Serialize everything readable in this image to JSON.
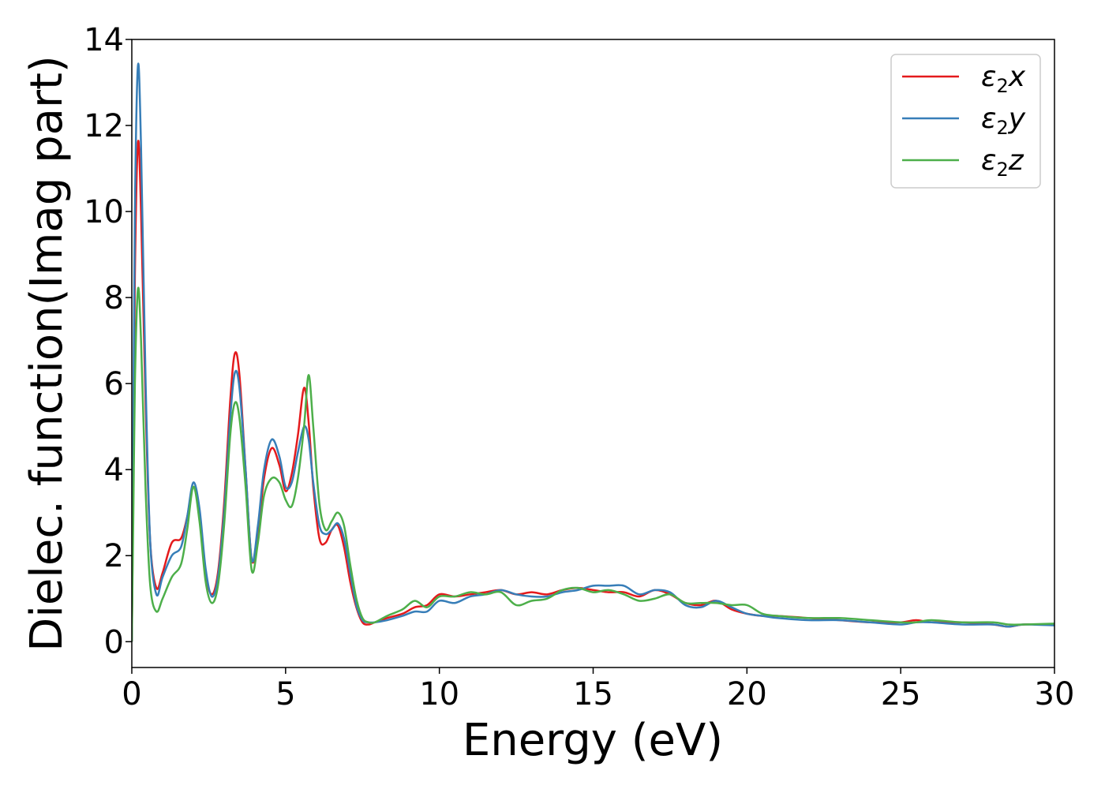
{
  "chart_data": {
    "type": "line",
    "xlabel": "Energy (eV)",
    "ylabel": "Dielec. function(Imag part)",
    "xlim": [
      0,
      30
    ],
    "ylim": [
      -0.6,
      14
    ],
    "xticks": [
      0,
      5,
      10,
      15,
      20,
      25,
      30
    ],
    "yticks": [
      0,
      2,
      4,
      6,
      8,
      10,
      12,
      14
    ],
    "grid": false,
    "legend_position": "top-right",
    "series": [
      {
        "name": "ε₂x",
        "legend": {
          "base": "ε",
          "sub": "2",
          "var": "x"
        },
        "color": "#e41a1c",
        "x": [
          0,
          0.05,
          0.1,
          0.2,
          0.3,
          0.45,
          0.6,
          0.8,
          1.0,
          1.3,
          1.6,
          1.8,
          2.0,
          2.2,
          2.4,
          2.6,
          2.8,
          3.0,
          3.2,
          3.35,
          3.5,
          3.7,
          3.9,
          4.1,
          4.3,
          4.55,
          4.8,
          5.0,
          5.2,
          5.4,
          5.6,
          5.75,
          5.9,
          6.1,
          6.3,
          6.5,
          6.7,
          6.9,
          7.1,
          7.3,
          7.5,
          7.7,
          7.9,
          8.3,
          8.8,
          9.2,
          9.6,
          10.0,
          10.5,
          11.0,
          11.5,
          12.0,
          12.5,
          13.0,
          13.5,
          14.0,
          14.5,
          15.0,
          15.5,
          16.0,
          16.5,
          17.0,
          17.5,
          18.0,
          18.5,
          19.0,
          19.5,
          20.0,
          20.5,
          21.0,
          22.0,
          23.0,
          24.0,
          25.0,
          25.5,
          26.0,
          27.0,
          28.0,
          28.5,
          29.0,
          30.0
        ],
        "y": [
          0,
          4.0,
          8.5,
          11.6,
          10.0,
          5.5,
          2.3,
          1.25,
          1.6,
          2.3,
          2.4,
          2.9,
          3.6,
          3.0,
          1.6,
          1.1,
          1.6,
          3.2,
          5.6,
          6.7,
          6.2,
          4.0,
          1.9,
          2.5,
          3.8,
          4.5,
          4.1,
          3.5,
          3.9,
          4.8,
          5.9,
          5.1,
          3.6,
          2.4,
          2.3,
          2.6,
          2.7,
          2.2,
          1.4,
          0.8,
          0.45,
          0.4,
          0.45,
          0.55,
          0.65,
          0.8,
          0.85,
          1.1,
          1.05,
          1.1,
          1.15,
          1.2,
          1.1,
          1.15,
          1.1,
          1.2,
          1.25,
          1.2,
          1.15,
          1.15,
          1.05,
          1.2,
          1.1,
          0.9,
          0.85,
          0.95,
          0.75,
          0.65,
          0.6,
          0.6,
          0.55,
          0.5,
          0.45,
          0.45,
          0.5,
          0.45,
          0.45,
          0.4,
          0.35,
          0.4,
          0.4
        ]
      },
      {
        "name": "ε₂y",
        "legend": {
          "base": "ε",
          "sub": "2",
          "var": "y"
        },
        "color": "#377eb8",
        "x": [
          0,
          0.05,
          0.1,
          0.2,
          0.3,
          0.45,
          0.6,
          0.8,
          1.0,
          1.3,
          1.6,
          1.8,
          2.0,
          2.2,
          2.4,
          2.6,
          2.8,
          3.0,
          3.2,
          3.35,
          3.5,
          3.7,
          3.9,
          4.1,
          4.3,
          4.55,
          4.8,
          5.0,
          5.2,
          5.4,
          5.6,
          5.75,
          5.9,
          6.1,
          6.3,
          6.5,
          6.7,
          6.9,
          7.1,
          7.3,
          7.5,
          7.7,
          7.9,
          8.3,
          8.8,
          9.2,
          9.6,
          10.0,
          10.5,
          11.0,
          11.5,
          12.0,
          12.5,
          13.0,
          13.5,
          14.0,
          14.5,
          15.0,
          15.5,
          16.0,
          16.5,
          17.0,
          17.5,
          18.0,
          18.5,
          19.0,
          19.5,
          20.0,
          20.5,
          21.0,
          22.0,
          23.0,
          24.0,
          25.0,
          25.5,
          26.0,
          27.0,
          28.0,
          28.5,
          29.0,
          30.0
        ],
        "y": [
          0,
          5.0,
          10.0,
          13.4,
          11.5,
          6.0,
          2.3,
          1.1,
          1.5,
          2.0,
          2.2,
          2.9,
          3.7,
          3.1,
          1.7,
          1.05,
          1.5,
          3.0,
          5.2,
          6.25,
          5.9,
          4.0,
          1.9,
          2.7,
          4.0,
          4.7,
          4.3,
          3.6,
          3.7,
          4.4,
          5.0,
          4.7,
          3.7,
          2.7,
          2.5,
          2.6,
          2.75,
          2.4,
          1.6,
          0.85,
          0.5,
          0.45,
          0.45,
          0.5,
          0.6,
          0.7,
          0.7,
          0.95,
          0.9,
          1.05,
          1.1,
          1.2,
          1.1,
          1.05,
          1.05,
          1.15,
          1.2,
          1.3,
          1.3,
          1.3,
          1.1,
          1.2,
          1.15,
          0.85,
          0.8,
          0.95,
          0.8,
          0.65,
          0.6,
          0.55,
          0.5,
          0.5,
          0.45,
          0.4,
          0.45,
          0.45,
          0.4,
          0.4,
          0.35,
          0.4,
          0.38
        ]
      },
      {
        "name": "ε₂z",
        "legend": {
          "base": "ε",
          "sub": "2",
          "var": "z"
        },
        "color": "#4daf4a",
        "x": [
          0,
          0.05,
          0.1,
          0.2,
          0.3,
          0.45,
          0.6,
          0.8,
          1.0,
          1.3,
          1.6,
          1.8,
          2.0,
          2.2,
          2.4,
          2.6,
          2.8,
          3.0,
          3.2,
          3.35,
          3.5,
          3.7,
          3.9,
          4.1,
          4.3,
          4.55,
          4.8,
          5.0,
          5.2,
          5.4,
          5.6,
          5.75,
          5.9,
          6.1,
          6.3,
          6.5,
          6.7,
          6.9,
          7.1,
          7.3,
          7.5,
          7.7,
          7.9,
          8.3,
          8.8,
          9.2,
          9.6,
          10.0,
          10.5,
          11.0,
          11.5,
          12.0,
          12.5,
          13.0,
          13.5,
          14.0,
          14.5,
          15.0,
          15.5,
          16.0,
          16.5,
          17.0,
          17.5,
          18.0,
          18.5,
          19.0,
          19.5,
          20.0,
          20.5,
          21.0,
          22.0,
          23.0,
          24.0,
          25.0,
          25.5,
          26.0,
          27.0,
          28.0,
          28.5,
          29.0,
          30.0
        ],
        "y": [
          0,
          3.0,
          6.0,
          8.2,
          7.0,
          3.5,
          1.3,
          0.7,
          1.0,
          1.5,
          1.8,
          2.6,
          3.6,
          2.8,
          1.4,
          0.9,
          1.3,
          2.7,
          4.8,
          5.55,
          5.2,
          3.6,
          1.65,
          2.3,
          3.4,
          3.8,
          3.7,
          3.3,
          3.15,
          3.8,
          5.0,
          6.2,
          5.0,
          3.2,
          2.6,
          2.8,
          3.0,
          2.7,
          1.8,
          1.0,
          0.55,
          0.45,
          0.45,
          0.6,
          0.75,
          0.95,
          0.8,
          1.05,
          1.05,
          1.15,
          1.1,
          1.15,
          0.85,
          0.95,
          1.0,
          1.2,
          1.25,
          1.15,
          1.2,
          1.1,
          0.95,
          1.0,
          1.1,
          0.9,
          0.9,
          0.9,
          0.85,
          0.85,
          0.65,
          0.6,
          0.55,
          0.55,
          0.5,
          0.45,
          0.45,
          0.5,
          0.45,
          0.45,
          0.4,
          0.4,
          0.42
        ]
      }
    ]
  }
}
